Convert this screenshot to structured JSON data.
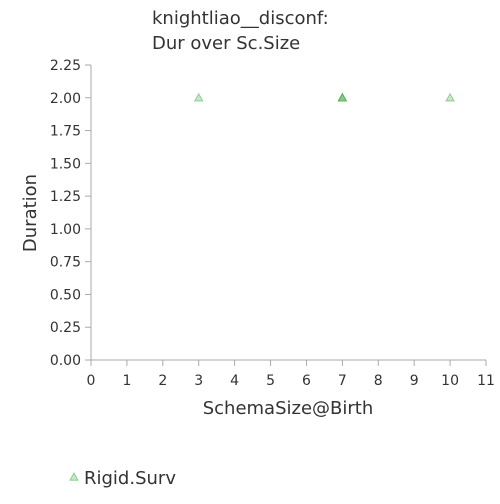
{
  "chart_data": {
    "type": "scatter",
    "title_lines": [
      "knightliao__disconf:",
      "Dur over Sc.Size"
    ],
    "xlabel": "SchemaSize@Birth",
    "ylabel": "Duration",
    "xlim": [
      0,
      11
    ],
    "ylim": [
      0,
      2.25
    ],
    "x_ticks": [
      "0",
      "1",
      "2",
      "3",
      "4",
      "5",
      "6",
      "7",
      "8",
      "9",
      "10",
      "11"
    ],
    "y_ticks": [
      "0.00",
      "0.25",
      "0.50",
      "0.75",
      "1.00",
      "1.25",
      "1.50",
      "1.75",
      "2.00",
      "2.25"
    ],
    "grid": false,
    "legend_position": "bottom-left",
    "series": [
      {
        "name": "Rigid.Surv",
        "marker": "triangle",
        "color": "#4caf50",
        "points": [
          {
            "x": 3,
            "y": 2
          },
          {
            "x": 7,
            "y": 2
          },
          {
            "x": 7,
            "y": 2
          },
          {
            "x": 7,
            "y": 2
          },
          {
            "x": 10,
            "y": 2
          }
        ]
      }
    ]
  }
}
